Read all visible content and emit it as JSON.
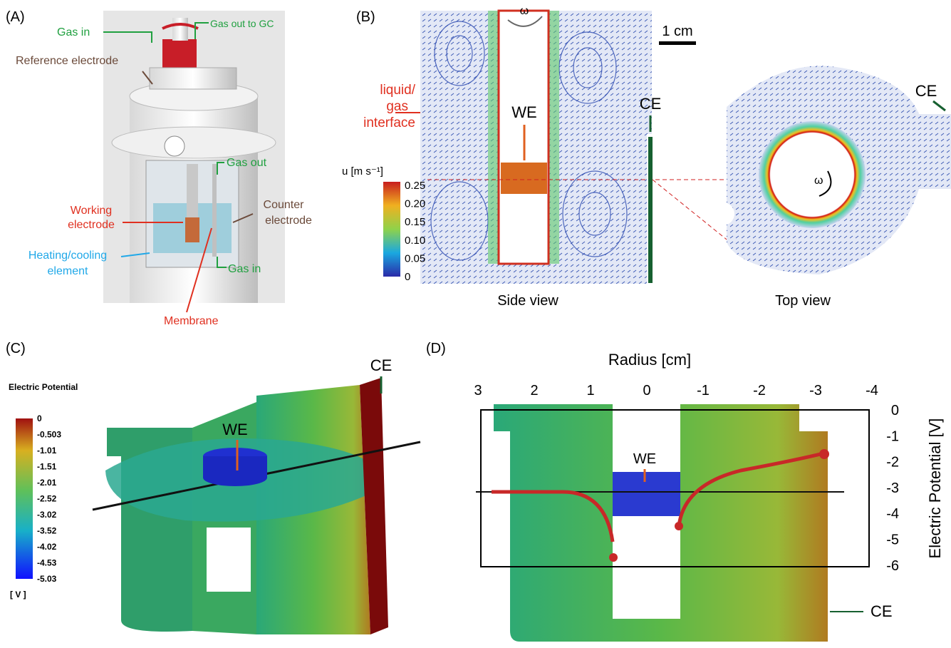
{
  "panelA": {
    "label": "(A)",
    "gas_in_top": "Gas in",
    "gas_out_gc": "Gas out to GC",
    "reference_electrode": "Reference electrode",
    "gas_out": "Gas out",
    "working_electrode": [
      "Working",
      "electrode"
    ],
    "counter_electrode": [
      "Counter",
      "electrode"
    ],
    "heating_cooling": [
      "Heating/cooling",
      "element"
    ],
    "gas_in_bottom": "Gas in",
    "membrane": "Membrane"
  },
  "panelB": {
    "label": "(B)",
    "omega_side": "ω",
    "scale_bar": "1 cm",
    "liquid_gas": [
      "liquid/",
      "gas",
      "interface"
    ],
    "we": "WE",
    "ce_side": "CE",
    "colorbar_title": "u [m s⁻¹]",
    "colorbar_ticks": [
      "0.25",
      "0.20",
      "0.15",
      "0.10",
      "0.05",
      "0"
    ],
    "side_view": "Side view",
    "top_view": "Top view",
    "ce_top": "CE",
    "omega_top": "ω"
  },
  "panelC": {
    "label": "(C)",
    "colorbar_title": "Electric Potential",
    "colorbar_ticks": [
      "0",
      "-0.503",
      "-1.01",
      "-1.51",
      "-2.01",
      "-2.52",
      "-3.02",
      "-3.52",
      "-4.02",
      "-4.53",
      "-5.03"
    ],
    "unit": "[ V ]",
    "we": "WE",
    "ce": "CE"
  },
  "panelD": {
    "label": "(D)",
    "x_title": "Radius [cm]",
    "xticks": [
      3,
      2,
      1,
      0,
      -1,
      -2,
      -3,
      -4
    ],
    "y_title": "Electric Potential [V]",
    "yticks": [
      0,
      -1,
      -2,
      -3,
      -4,
      -5,
      -6
    ],
    "we": "WE",
    "ce": "CE"
  }
}
